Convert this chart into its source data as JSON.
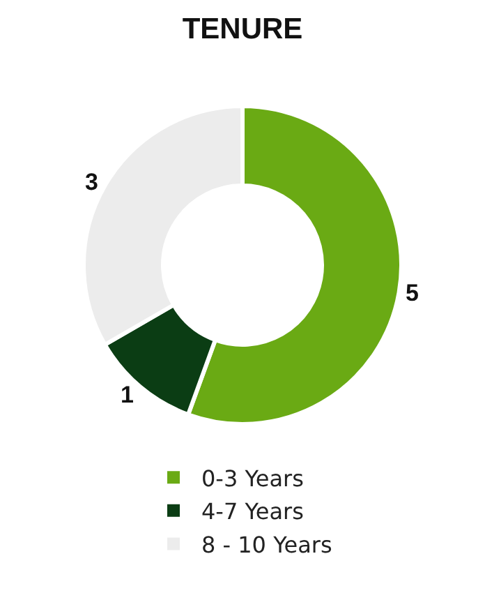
{
  "chart_data": {
    "type": "donut",
    "title": "TENURE",
    "categories": [
      "0-3 Years",
      "4-7 Years",
      "8 - 10 Years"
    ],
    "values": [
      5,
      1,
      3
    ],
    "colors": [
      "#6aaa14",
      "#0b3d14",
      "#ececec"
    ],
    "data_labels": true,
    "legend": "bottom"
  }
}
